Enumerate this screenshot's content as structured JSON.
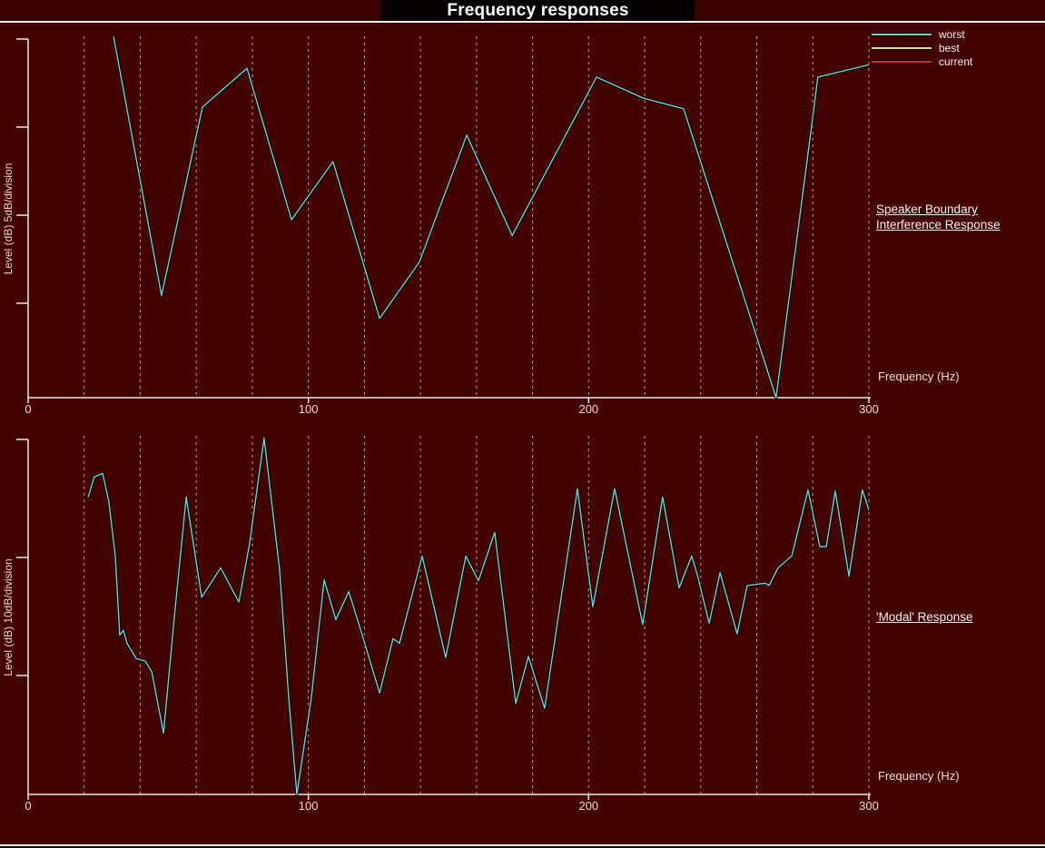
{
  "title_bar": {
    "title": "Frequency responses"
  },
  "colors": {
    "background": "#430303",
    "band": "#3a0000",
    "title_patch": "#070000",
    "axis": "#efe5e2",
    "grid": "#d9b2aa",
    "tick_text": "#f2d8d0",
    "link_text": "#f7f2f0",
    "worst": "#6fd1d1",
    "best": "#e9dc7a",
    "current": "#d42a2a"
  },
  "legend": {
    "position": "top-right",
    "items": [
      {
        "label": "worst",
        "color": "worst"
      },
      {
        "label": "best",
        "color": "best"
      },
      {
        "label": "current",
        "color": "current"
      }
    ]
  },
  "chart_data": [
    {
      "type": "line",
      "title": "Speaker Boundary Interference Response",
      "side_label_lines": [
        "Speaker Boundary",
        "Interference Response"
      ],
      "xlabel": "Frequency (Hz)",
      "ylabel": "Level (dB) 5dB/division",
      "xlim": [
        0,
        300
      ],
      "x_ticks": [
        0,
        100,
        200,
        300
      ],
      "grid_interval_hz": 20,
      "grid_style": "vertical dashed",
      "db_per_division": 5,
      "ylim_db": [
        0,
        20.5
      ],
      "legend_shown": true,
      "series": [
        {
          "name": "worst",
          "color": "worst",
          "points_freq_db": [
            [
              30.5,
              20.5
            ],
            [
              47.6,
              5.8
            ],
            [
              62.2,
              16.5
            ],
            [
              78.1,
              18.7
            ],
            [
              94,
              10.1
            ],
            [
              108.8,
              13.4
            ],
            [
              125.4,
              4.5
            ],
            [
              139.6,
              7.7
            ],
            [
              156.5,
              14.9
            ],
            [
              172.7,
              9.2
            ],
            [
              202.8,
              18.2
            ],
            [
              219.6,
              17
            ],
            [
              233.9,
              16.4
            ],
            [
              266.9,
              0
            ],
            [
              280.2,
              16.2
            ],
            [
              281.8,
              18.2
            ],
            [
              300,
              18.9
            ]
          ]
        }
      ]
    },
    {
      "type": "line",
      "title": "'Modal' Response",
      "side_label_lines": [
        "'Modal' Response"
      ],
      "xlabel": "Frequency (Hz)",
      "ylabel": "Level (dB) 10dB/division",
      "xlim": [
        0,
        300
      ],
      "x_ticks": [
        0,
        100,
        200,
        300
      ],
      "grid_interval_hz": 20,
      "grid_style": "vertical dashed",
      "db_per_division": 10,
      "ylim_db": [
        0,
        30.4
      ],
      "legend_shown": false,
      "series": [
        {
          "name": "worst",
          "color": "worst",
          "points_freq_db": [
            [
              21.4,
              25.2
            ],
            [
              23.6,
              26.9
            ],
            [
              26.6,
              27.2
            ],
            [
              28.8,
              24.8
            ],
            [
              31.1,
              20.2
            ],
            [
              32.7,
              13.5
            ],
            [
              34,
              13.9
            ],
            [
              35.3,
              12.8
            ],
            [
              38.6,
              11.5
            ],
            [
              41.8,
              11.3
            ],
            [
              44.1,
              10.4
            ],
            [
              48.3,
              5.2
            ],
            [
              52.5,
              15.8
            ],
            [
              56.4,
              25.2
            ],
            [
              61.9,
              16.7
            ],
            [
              68.7,
              19.2
            ],
            [
              75.2,
              16.3
            ],
            [
              79,
              21.2
            ],
            [
              84.2,
              30.2
            ],
            [
              89.7,
              19.1
            ],
            [
              93,
              8.1
            ],
            [
              95.9,
              0
            ],
            [
              101.1,
              8.3
            ],
            [
              105.6,
              18.2
            ],
            [
              109.8,
              14.8
            ],
            [
              114.4,
              17.2
            ],
            [
              119.6,
              13.2
            ],
            [
              125.4,
              8.6
            ],
            [
              130.2,
              13.2
            ],
            [
              132.5,
              12.8
            ],
            [
              140.6,
              20.2
            ],
            [
              149,
              11.6
            ],
            [
              156.2,
              20.2
            ],
            [
              160.7,
              18.1
            ],
            [
              166.5,
              22.2
            ],
            [
              174,
              7.7
            ],
            [
              178.5,
              11.7
            ],
            [
              184.3,
              7.3
            ],
            [
              196,
              25.9
            ],
            [
              201.5,
              15.9
            ],
            [
              209.3,
              25.9
            ],
            [
              219.3,
              14.4
            ],
            [
              226.4,
              25.2
            ],
            [
              232.3,
              17.5
            ],
            [
              236.8,
              20.2
            ],
            [
              238.8,
              18.6
            ],
            [
              243,
              14.5
            ],
            [
              246.9,
              18.8
            ],
            [
              253,
              13.6
            ],
            [
              256.6,
              17.7
            ],
            [
              263.1,
              17.9
            ],
            [
              264.4,
              17.7
            ],
            [
              267.6,
              19.2
            ],
            [
              272.5,
              20.2
            ],
            [
              278.3,
              25.8
            ],
            [
              282.5,
              21
            ],
            [
              284.8,
              21
            ],
            [
              288,
              25.7
            ],
            [
              292.9,
              18.5
            ],
            [
              297.7,
              25.8
            ],
            [
              300,
              24.1
            ]
          ]
        }
      ]
    }
  ]
}
